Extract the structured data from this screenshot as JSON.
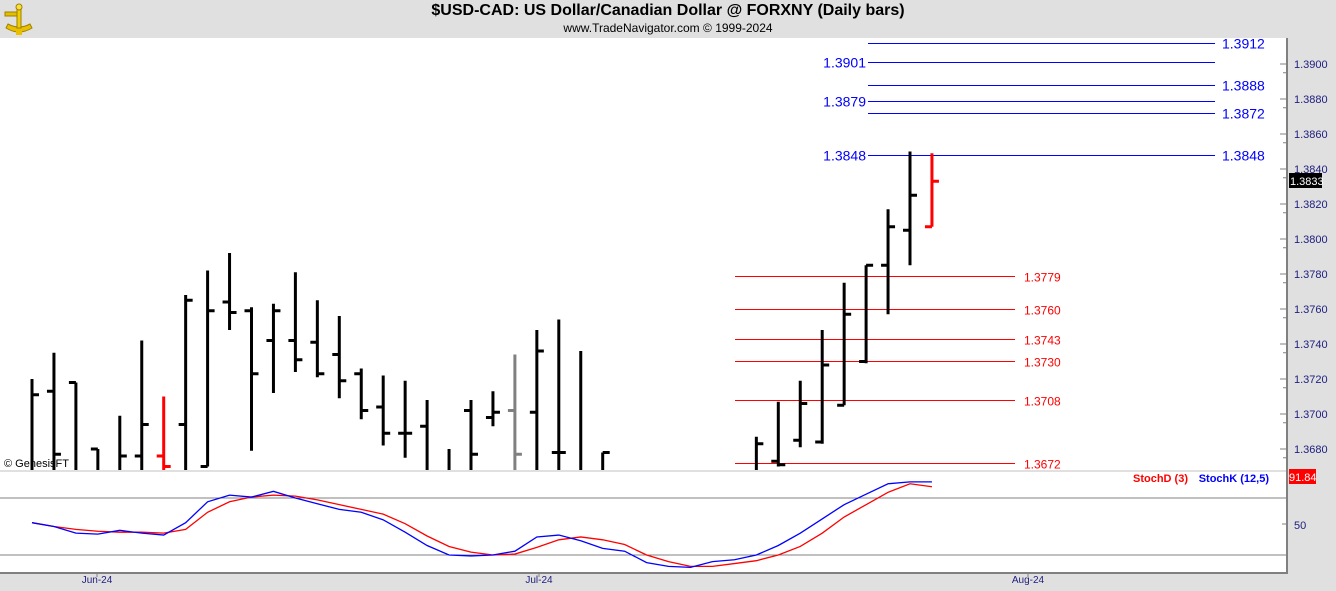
{
  "header": {
    "title": "$USD-CAD:  US Dollar/Canadian Dollar @ FORXNY  (Daily bars)",
    "subtitle": "www.TradeNavigator.com © 1999-2024",
    "logo_icon": "sextant-icon"
  },
  "watermark": "© GenesisFT",
  "colors": {
    "up_bar": "#000000",
    "last_bar": "#ff0000",
    "holiday_bar": "#808080",
    "fib_blue": "#0000ff",
    "fib_red": "#ff0000",
    "stochK": "#0000ff",
    "stochD": "#ff0000"
  },
  "chart_data": [
    {
      "type": "ohlc",
      "title": "$USD-CAD:  US Dollar/Canadian Dollar @ FORXNY  (Daily bars)",
      "ylim": [
        1.3665,
        1.392
      ],
      "y_ticks": [
        "1.3900",
        "1.3880",
        "1.3860",
        "1.3840",
        "1.3820",
        "1.3800",
        "1.3780",
        "1.3760",
        "1.3740",
        "1.3720",
        "1.3700",
        "1.3680"
      ],
      "x_ticks": [
        "Jun-24",
        "Jul-24",
        "Aug-24"
      ],
      "last_price_label": "1.3833",
      "bars": [
        {
          "date": "2024-05-29",
          "o": null,
          "h": 1.372,
          "l": 1.366,
          "c": 1.3711
        },
        {
          "date": "2024-05-30",
          "o": 1.3713,
          "h": 1.3735,
          "l": 1.366,
          "c": 1.3677
        },
        {
          "date": "2024-05-31",
          "o": 1.3718,
          "h": 1.3718,
          "l": 1.366,
          "c": null
        },
        {
          "date": "2024-06-03",
          "o": 1.368,
          "h": 1.368,
          "l": 1.366,
          "c": null
        },
        {
          "date": "2024-06-04",
          "o": null,
          "h": 1.3699,
          "l": 1.366,
          "c": 1.3676
        },
        {
          "date": "2024-06-05",
          "o": 1.3676,
          "h": 1.3742,
          "l": 1.366,
          "c": 1.3694
        },
        {
          "date": "2024-06-06",
          "o": 1.3676,
          "h": 1.371,
          "l": 1.366,
          "c": 1.367,
          "color": "last_bar"
        },
        {
          "date": "2024-06-07",
          "o": 1.3694,
          "h": 1.3768,
          "l": 1.366,
          "c": 1.3765
        },
        {
          "date": "2024-06-10",
          "o": 1.367,
          "h": 1.3782,
          "l": 1.367,
          "c": 1.3759
        },
        {
          "date": "2024-06-11",
          "o": 1.3764,
          "h": 1.3792,
          "l": 1.3748,
          "c": 1.3758
        },
        {
          "date": "2024-06-12",
          "o": 1.3759,
          "h": 1.3761,
          "l": 1.3679,
          "c": 1.3723
        },
        {
          "date": "2024-06-13",
          "o": 1.3742,
          "h": 1.3763,
          "l": 1.3712,
          "c": 1.3759
        },
        {
          "date": "2024-06-14",
          "o": 1.3742,
          "h": 1.3781,
          "l": 1.3724,
          "c": 1.3731
        },
        {
          "date": "2024-06-17",
          "o": 1.3741,
          "h": 1.3765,
          "l": 1.3721,
          "c": 1.3723
        },
        {
          "date": "2024-06-18",
          "o": 1.3734,
          "h": 1.3756,
          "l": 1.3709,
          "c": 1.3719
        },
        {
          "date": "2024-06-19",
          "o": 1.3723,
          "h": 1.3726,
          "l": 1.3697,
          "c": 1.3702
        },
        {
          "date": "2024-06-20",
          "o": 1.3704,
          "h": 1.3722,
          "l": 1.3682,
          "c": 1.3689
        },
        {
          "date": "2024-06-21",
          "o": 1.3689,
          "h": 1.3719,
          "l": 1.3675,
          "c": 1.3689
        },
        {
          "date": "2024-06-24",
          "o": 1.3693,
          "h": 1.3708,
          "l": 1.366,
          "c": null
        },
        {
          "date": "2024-06-25",
          "o": null,
          "h": 1.368,
          "l": 1.366,
          "c": null
        },
        {
          "date": "2024-06-26",
          "o": 1.3702,
          "h": 1.3708,
          "l": 1.366,
          "c": 1.3677
        },
        {
          "date": "2024-06-27",
          "o": 1.3698,
          "h": 1.3713,
          "l": 1.3693,
          "c": 1.3701
        },
        {
          "date": "2024-06-28",
          "o": 1.3702,
          "h": 1.3734,
          "l": 1.366,
          "c": 1.3677,
          "color": "holiday_bar"
        },
        {
          "date": "2024-07-01",
          "o": 1.3701,
          "h": 1.3748,
          "l": 1.366,
          "c": 1.3736
        },
        {
          "date": "2024-07-02",
          "o": 1.3678,
          "h": 1.3754,
          "l": 1.366,
          "c": 1.3678
        },
        {
          "date": "2024-07-03",
          "o": null,
          "h": 1.3736,
          "l": 1.366,
          "c": null
        },
        {
          "date": "2024-07-05",
          "o": null,
          "h": 1.3678,
          "l": 1.366,
          "c": 1.3678
        },
        {
          "date": "2024-07-16",
          "o": null,
          "h": 1.3687,
          "l": 1.366,
          "c": 1.3683
        },
        {
          "date": "2024-07-17",
          "o": 1.3673,
          "h": 1.3707,
          "l": 1.367,
          "c": 1.3671
        },
        {
          "date": "2024-07-18",
          "o": 1.3685,
          "h": 1.3719,
          "l": 1.3681,
          "c": 1.3706
        },
        {
          "date": "2024-07-19",
          "o": 1.3684,
          "h": 1.3748,
          "l": 1.3683,
          "c": 1.3728
        },
        {
          "date": "2024-07-22",
          "o": 1.3705,
          "h": 1.3775,
          "l": 1.3705,
          "c": 1.3757
        },
        {
          "date": "2024-07-23",
          "o": 1.373,
          "h": 1.3785,
          "l": 1.3729,
          "c": 1.3785
        },
        {
          "date": "2024-07-24",
          "o": 1.3785,
          "h": 1.3817,
          "l": 1.3757,
          "c": 1.3807
        },
        {
          "date": "2024-07-25",
          "o": 1.3805,
          "h": 1.385,
          "l": 1.3785,
          "c": 1.3825
        },
        {
          "date": "2024-07-26",
          "o": 1.3807,
          "h": 1.3849,
          "l": 1.3807,
          "c": 1.3833,
          "color": "last_bar"
        }
      ],
      "fib_levels_blue_left": [
        "1.3901",
        "1.3879",
        "1.3848"
      ],
      "fib_levels_blue_right": [
        "1.3912",
        "1.3888",
        "1.3872",
        "1.3848"
      ],
      "fib_levels_red": [
        "1.3779",
        "1.3760",
        "1.3743",
        "1.3730",
        "1.3708",
        "1.3672"
      ]
    },
    {
      "type": "line",
      "ylim": [
        0,
        100
      ],
      "y_ticks": [
        "50"
      ],
      "reference_lines": [
        80,
        20
      ],
      "last_value_label": "91.84",
      "series": [
        {
          "name": "StochD (3)",
          "color": "#ff0000",
          "values": [
            54,
            50,
            47,
            45,
            44,
            44,
            43,
            47,
            65,
            76,
            81,
            83,
            82,
            78,
            73,
            68,
            63,
            53,
            40,
            29,
            23,
            20,
            21,
            28,
            36,
            39,
            36,
            31,
            20,
            13,
            8,
            8,
            11,
            14,
            20,
            29,
            43,
            60,
            73,
            86,
            95,
            91.84
          ]
        },
        {
          "name": "StochK (12,5)",
          "color": "#0000ff",
          "values": [
            54,
            50,
            43,
            42,
            46,
            43,
            41,
            54,
            76,
            83,
            81,
            87,
            80,
            74,
            68,
            65,
            57,
            44,
            30,
            20,
            19,
            20,
            24,
            39,
            41,
            35,
            27,
            24,
            12,
            8,
            7,
            13,
            15,
            20,
            30,
            43,
            58,
            73,
            84,
            95,
            97,
            97
          ]
        }
      ],
      "dates": [
        "2024-05-29",
        "2024-05-30",
        "2024-05-31",
        "2024-06-03",
        "2024-06-04",
        "2024-06-05",
        "2024-06-06",
        "2024-06-07",
        "2024-06-10",
        "2024-06-11",
        "2024-06-12",
        "2024-06-13",
        "2024-06-14",
        "2024-06-17",
        "2024-06-18",
        "2024-06-19",
        "2024-06-20",
        "2024-06-21",
        "2024-06-24",
        "2024-06-25",
        "2024-06-26",
        "2024-06-27",
        "2024-06-28",
        "2024-07-01",
        "2024-07-02",
        "2024-07-03",
        "2024-07-05",
        "2024-07-08",
        "2024-07-09",
        "2024-07-10",
        "2024-07-11",
        "2024-07-12",
        "2024-07-15",
        "2024-07-16",
        "2024-07-17",
        "2024-07-18",
        "2024-07-19",
        "2024-07-22",
        "2024-07-23",
        "2024-07-24",
        "2024-07-25",
        "2024-07-26"
      ]
    }
  ]
}
